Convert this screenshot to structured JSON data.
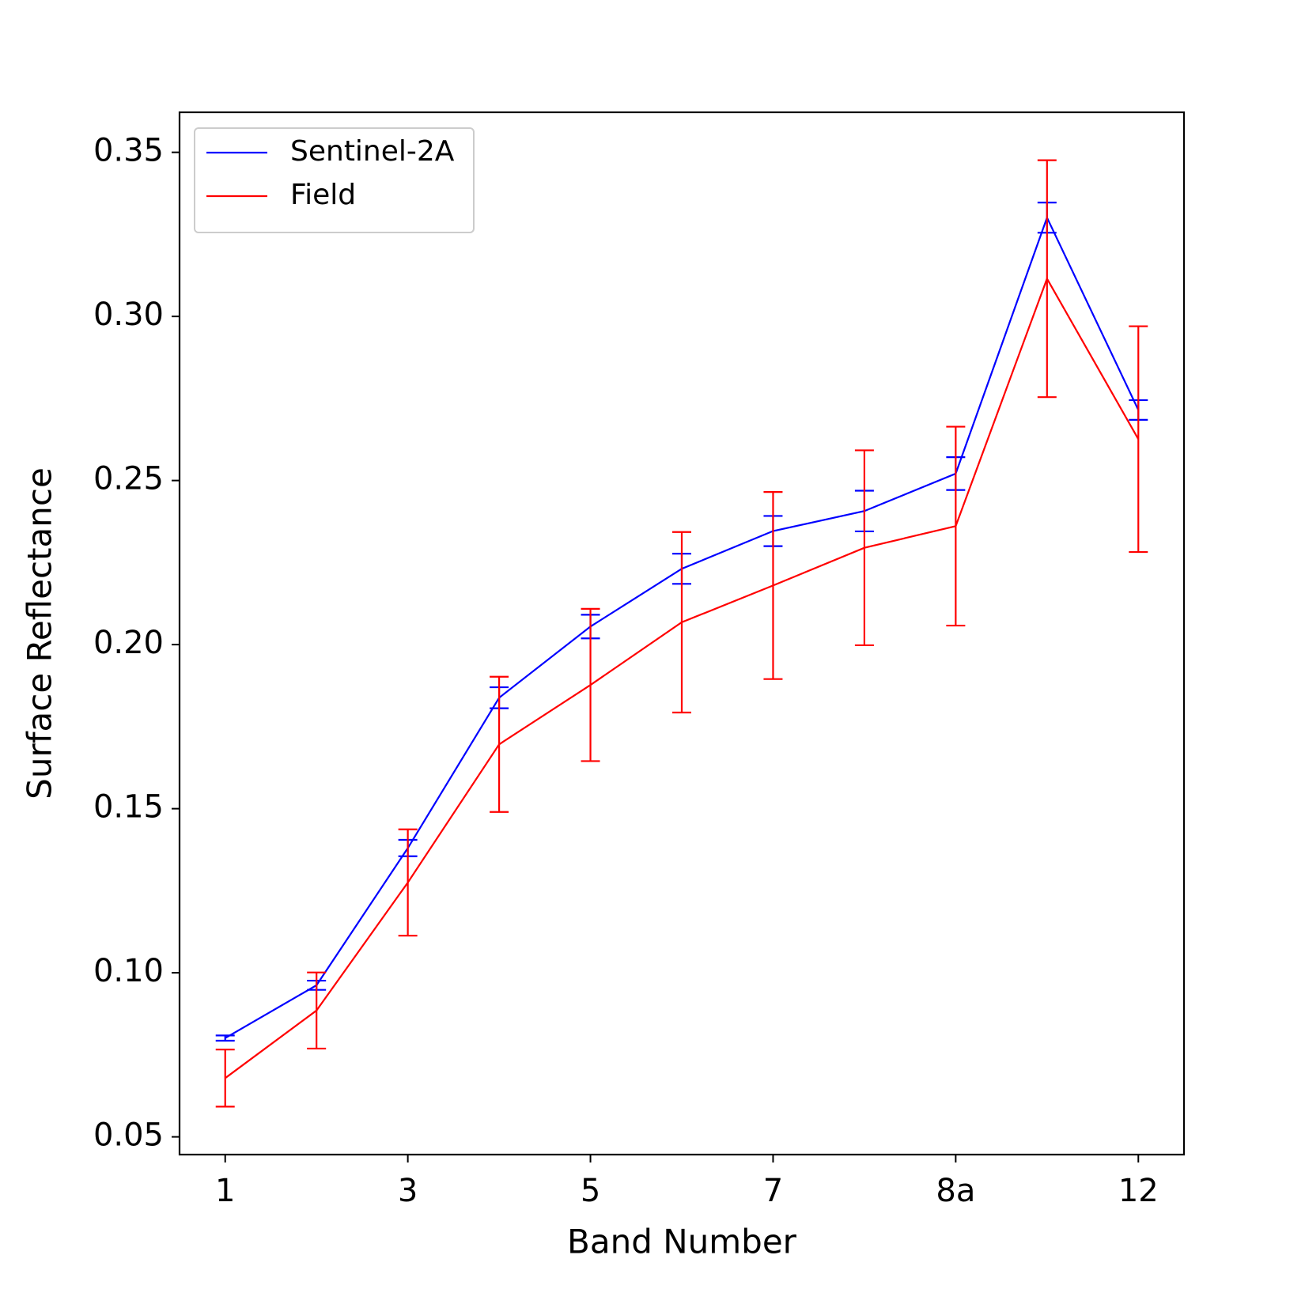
{
  "chart_data": {
    "type": "line",
    "xlabel": "Band Number",
    "ylabel": "Surface Reflectance",
    "categories": [
      "1",
      null,
      "3",
      null,
      "5",
      null,
      "7",
      null,
      "8a",
      null,
      "12"
    ],
    "series": [
      {
        "name": "Sentinel-2A",
        "color": "#0000ff",
        "values": [
          0.0801,
          0.0962,
          0.138,
          0.1838,
          0.2055,
          0.2231,
          0.2346,
          0.2407,
          0.2521,
          0.3301,
          0.2715
        ],
        "errors": [
          0.0008,
          0.0014,
          0.0025,
          0.0032,
          0.0036,
          0.0046,
          0.0046,
          0.0062,
          0.005,
          0.0046,
          0.003
        ]
      },
      {
        "name": "Field",
        "color": "#ff0000",
        "values": [
          0.0679,
          0.0885,
          0.1275,
          0.1696,
          0.1877,
          0.2068,
          0.218,
          0.2295,
          0.2361,
          0.3115,
          0.2626
        ],
        "errors": [
          0.0087,
          0.0116,
          0.0162,
          0.0206,
          0.0232,
          0.0275,
          0.0285,
          0.0297,
          0.0303,
          0.0361,
          0.0344
        ]
      }
    ],
    "ylim": [
      0.0446,
      0.3622
    ],
    "yticks": [
      0.05,
      {
        "value": 0.1,
        "label": "0.10"
      },
      0.15,
      {
        "value": 0.2,
        "label": "0.20"
      },
      0.25,
      {
        "value": 0.3,
        "label": "0.30"
      },
      0.35
    ],
    "grid": false,
    "legend": "upper left"
  }
}
